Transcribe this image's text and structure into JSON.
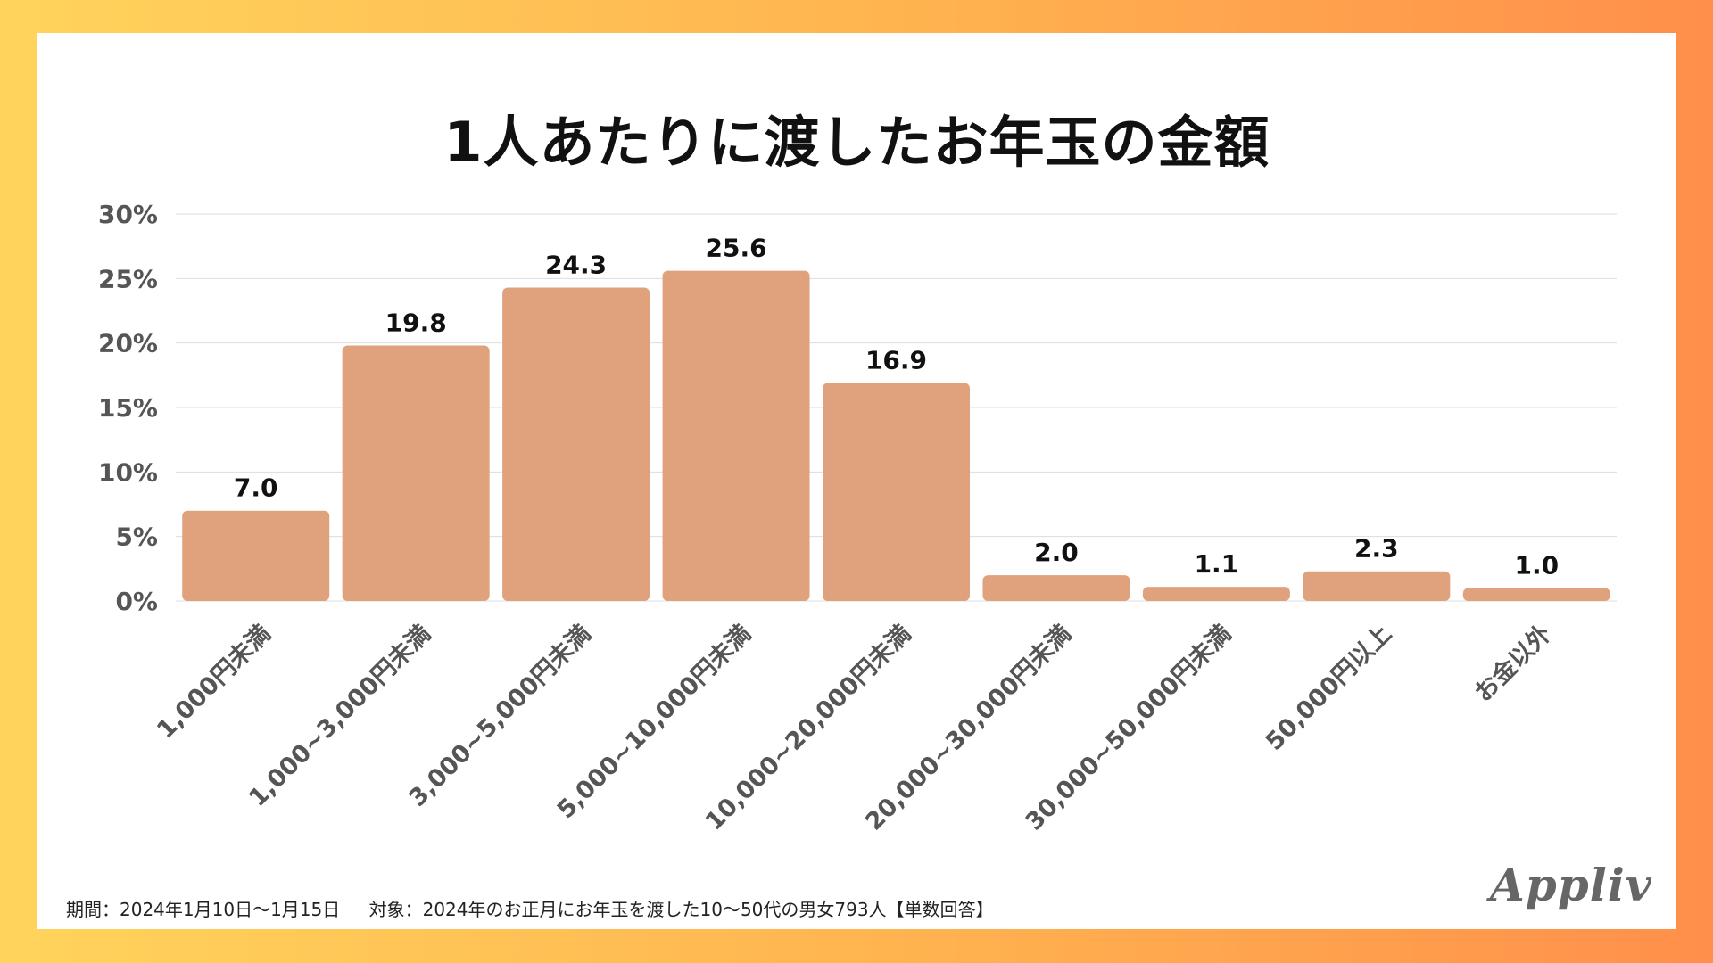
{
  "title": "1人あたりに渡したお年玉の金額",
  "footnote": {
    "period": "期間：2024年1月10日〜1月15日",
    "target": "対象：2024年のお正月にお年玉を渡した10〜50代の男女793人【単数回答】"
  },
  "logo_text": "Appliv",
  "colors": {
    "bar": "#e0a27c",
    "grid": "#dddddd",
    "axis_text": "#555555",
    "value_text": "#111111"
  },
  "chart_data": {
    "type": "bar",
    "title": "1人あたりに渡したお年玉の金額",
    "categories": [
      "1,000円未満",
      "1,000~3,000円未満",
      "3,000~5,000円未満",
      "5,000~10,000円未満",
      "10,000~20,000円未満",
      "20,000~30,000円未満",
      "30,000~50,000円未満",
      "50,000円以上",
      "お金以外"
    ],
    "values": [
      7.0,
      19.8,
      24.3,
      25.6,
      16.9,
      2.0,
      1.1,
      2.3,
      1.0
    ],
    "value_labels": [
      "7.0",
      "19.8",
      "24.3",
      "25.6",
      "16.9",
      "2.0",
      "1.1",
      "2.3",
      "1.0"
    ],
    "yticks": [
      0,
      5,
      10,
      15,
      20,
      25,
      30
    ],
    "ytick_labels": [
      "0%",
      "5%",
      "10%",
      "15%",
      "20%",
      "25%",
      "30%"
    ],
    "ylim": [
      0,
      30
    ],
    "xlabel": "",
    "ylabel": "",
    "grid": true
  }
}
